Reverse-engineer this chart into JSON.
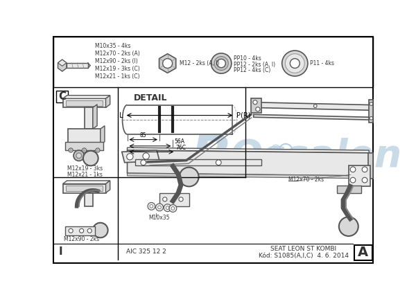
{
  "bg_color": "#ffffff",
  "line_color": "#555555",
  "dark_color": "#333333",
  "light_fill": "#e8e8e8",
  "mid_fill": "#d0d0d0",
  "watermark_color": "#b8cfe0",
  "bolt_labels": [
    "M10x35 - 4ks",
    "M12x70 - 2ks (A)",
    "M12x90 - 2ks (I)",
    "M12x19 - 3ks (C)",
    "M12x21 - 1ks (C)"
  ],
  "nut_label": "M12 - 2ks (A, I)",
  "washer_labels": [
    "PP10 - 4ks",
    "PP12 - 2ks (A, I)",
    "PP12 - 4ks (C)"
  ],
  "disc_label": "P11 - 4ks",
  "detail_title": "DETAIL",
  "label_L": "L",
  "label_PR": "P(R)",
  "dim_85": "85",
  "dim_56A": "56A",
  "dim_76C": "76C",
  "label_C_top": "C",
  "label_C_left": "C",
  "label_I": "I",
  "label_A": "A",
  "c_labels": [
    "M12x19 - 3ks",
    "M12x21 - 1ks"
  ],
  "i_label": "M12x90 - 2ks",
  "label_M12x70": "M12x70 - 2ks",
  "label_M10x35": "M10x35",
  "footer_left": "AIC 325 12 2",
  "footer_car": "SEAT LEON ST KOMBI",
  "footer_code": "Kód: S1085(A,I,C)  4. 6. 2014"
}
